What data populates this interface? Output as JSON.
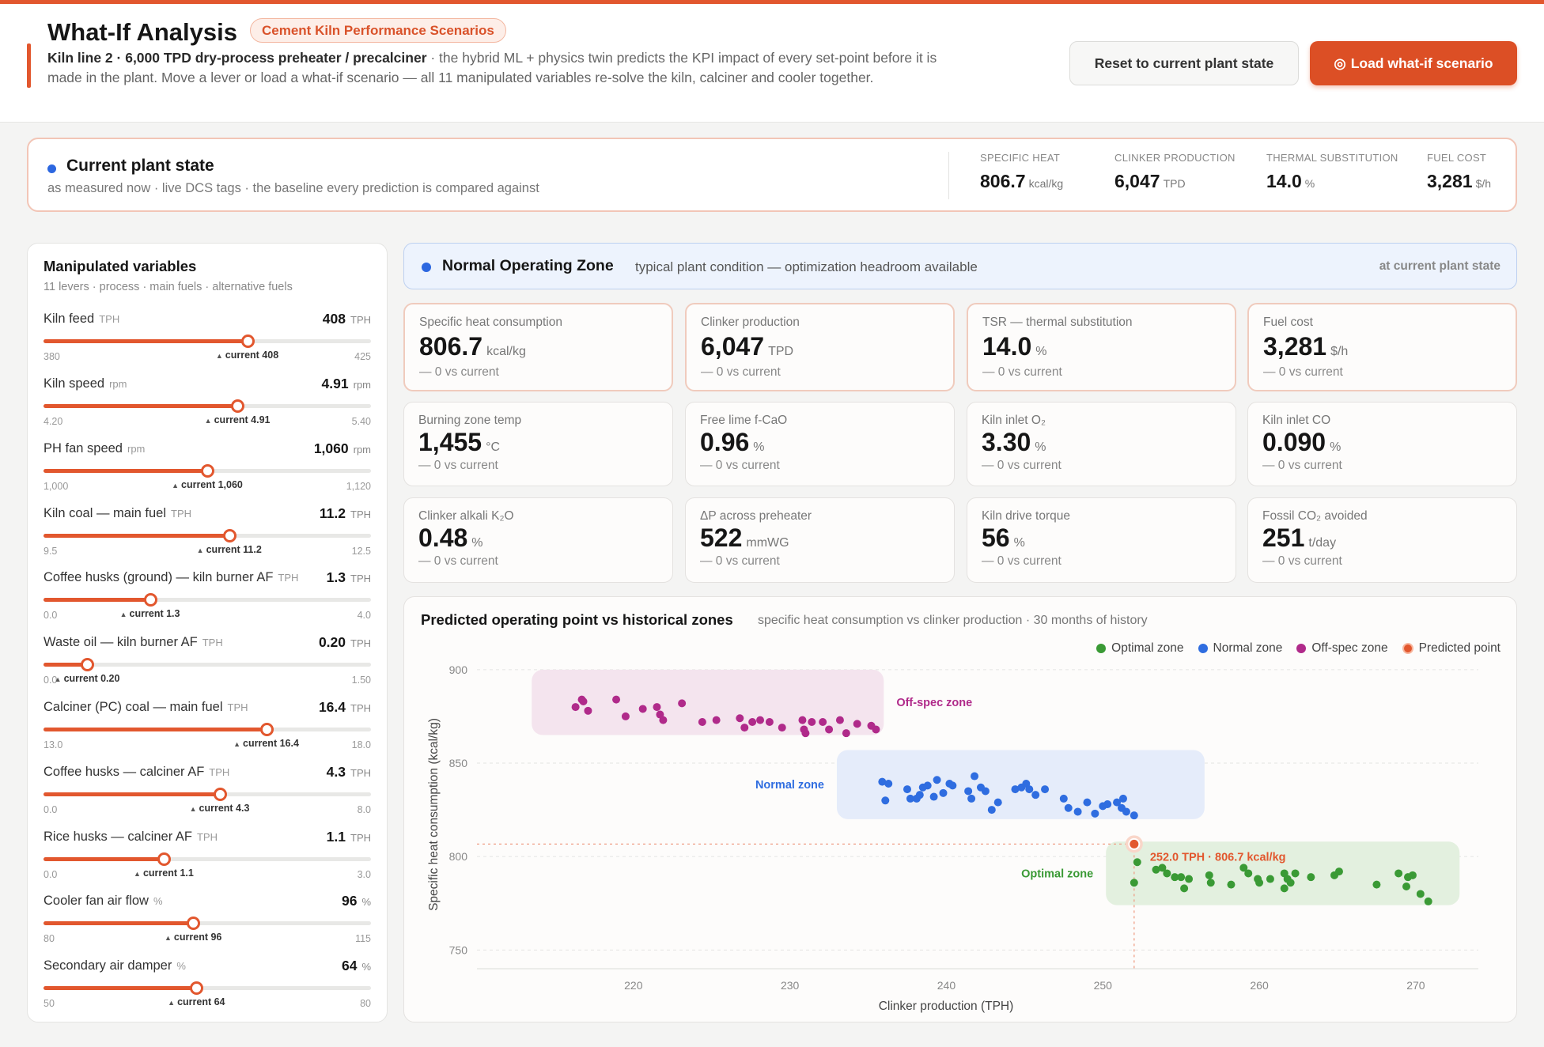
{
  "header": {
    "title": "What-If Analysis",
    "badge": "Cement Kiln Performance Scenarios",
    "desc_bold": "Kiln line 2 · 6,000 TPD dry-process preheater / precalciner",
    "desc_rest": " · the hybrid ML + physics twin predicts the KPI impact of every set-point before it is made in the plant. Move a lever or load a what-if scenario — all 11 manipulated variables re-solve the kiln, calciner and cooler together.",
    "reset_label": "Reset to current plant state",
    "load_icon": "◎",
    "load_label": "Load what-if scenario"
  },
  "current_state": {
    "title": "Current plant state",
    "subtitle": "as measured now · live DCS tags · the baseline every prediction is compared against",
    "metrics": [
      {
        "label": "SPECIFIC HEAT",
        "value": "806.7",
        "unit": "kcal/kg"
      },
      {
        "label": "CLINKER PRODUCTION",
        "value": "6,047",
        "unit": "TPD"
      },
      {
        "label": "THERMAL SUBSTITUTION",
        "value": "14.0",
        "unit": "%"
      },
      {
        "label": "FUEL COST",
        "value": "3,281",
        "unit": "$/h"
      }
    ]
  },
  "levers_panel": {
    "title": "Manipulated variables",
    "subtitle": "11 levers · process · main fuels · alternative fuels",
    "levers": [
      {
        "name": "Kiln feed",
        "unit": "TPH",
        "value": "408",
        "min": "380",
        "max": "425",
        "current": "current 408",
        "fraction": 0.622
      },
      {
        "name": "Kiln speed",
        "unit": "rpm",
        "value": "4.91",
        "min": "4.20",
        "max": "5.40",
        "current": "current 4.91",
        "fraction": 0.592
      },
      {
        "name": "PH fan speed",
        "unit": "rpm",
        "value": "1,060",
        "min": "1,000",
        "max": "1,120",
        "current": "current 1,060",
        "fraction": 0.5
      },
      {
        "name": "Kiln coal — main fuel",
        "unit": "TPH",
        "value": "11.2",
        "min": "9.5",
        "max": "12.5",
        "current": "current 11.2",
        "fraction": 0.567
      },
      {
        "name": "Coffee husks (ground) — kiln burner AF",
        "unit": "TPH",
        "value": "1.3",
        "min": "0.0",
        "max": "4.0",
        "current": "current 1.3",
        "fraction": 0.325
      },
      {
        "name": "Waste oil — kiln burner AF",
        "unit": "TPH",
        "value": "0.20",
        "min": "0.0",
        "max": "1.50",
        "current": "current 0.20",
        "fraction": 0.133
      },
      {
        "name": "Calciner (PC) coal — main fuel",
        "unit": "TPH",
        "value": "16.4",
        "min": "13.0",
        "max": "18.0",
        "current": "current 16.4",
        "fraction": 0.68
      },
      {
        "name": "Coffee husks — calciner AF",
        "unit": "TPH",
        "value": "4.3",
        "min": "0.0",
        "max": "8.0",
        "current": "current 4.3",
        "fraction": 0.5375
      },
      {
        "name": "Rice husks — calciner AF",
        "unit": "TPH",
        "value": "1.1",
        "min": "0.0",
        "max": "3.0",
        "current": "current 1.1",
        "fraction": 0.367
      },
      {
        "name": "Cooler fan air flow",
        "unit": "%",
        "value": "96",
        "min": "80",
        "max": "115",
        "current": "current 96",
        "fraction": 0.457
      },
      {
        "name": "Secondary air damper",
        "unit": "%",
        "value": "64",
        "min": "50",
        "max": "80",
        "current": "current 64",
        "fraction": 0.467
      }
    ]
  },
  "zone": {
    "title": "Normal Operating Zone",
    "desc": "typical plant condition — optimization headroom available",
    "right": "at current plant state"
  },
  "kpis": [
    {
      "label": "Specific heat consumption",
      "value": "806.7",
      "unit": "kcal/kg",
      "delta": "— 0 vs current"
    },
    {
      "label": "Clinker production",
      "value": "6,047",
      "unit": "TPD",
      "delta": "— 0 vs current"
    },
    {
      "label": "TSR — thermal substitution",
      "value": "14.0",
      "unit": "%",
      "delta": "— 0 vs current"
    },
    {
      "label": "Fuel cost",
      "value": "3,281",
      "unit": "$/h",
      "delta": "— 0 vs current"
    },
    {
      "label": "Burning zone temp",
      "value": "1,455",
      "unit": "°C",
      "delta": "— 0 vs current"
    },
    {
      "label": "Free lime f-CaO",
      "value": "0.96",
      "unit": "%",
      "delta": "— 0 vs current"
    },
    {
      "label": "Kiln inlet O₂",
      "value": "3.30",
      "unit": "%",
      "delta": "— 0 vs current"
    },
    {
      "label": "Kiln inlet CO",
      "value": "0.090",
      "unit": "%",
      "delta": "— 0 vs current"
    },
    {
      "label": "Clinker alkali K₂O",
      "value": "0.48",
      "unit": "%",
      "delta": "— 0 vs current"
    },
    {
      "label": "ΔP across preheater",
      "value": "522",
      "unit": "mmWG",
      "delta": "— 0 vs current"
    },
    {
      "label": "Kiln drive torque",
      "value": "56",
      "unit": "%",
      "delta": "— 0 vs current"
    },
    {
      "label": "Fossil CO₂ avoided",
      "value": "251",
      "unit": "t/day",
      "delta": "— 0 vs current"
    }
  ],
  "chart_panel": {
    "title": "Predicted operating point vs historical zones",
    "subtitle": "specific heat consumption vs clinker production · 30 months of history"
  },
  "chart_data": {
    "type": "scatter",
    "xlabel": "Clinker production (TPH)",
    "ylabel": "Specific heat consumption (kcal/kg)",
    "xlim": [
      210,
      274
    ],
    "ylim": [
      740,
      905
    ],
    "xticks": [
      220,
      230,
      240,
      250,
      260,
      270
    ],
    "yticks": [
      750,
      800,
      850,
      900
    ],
    "grid": true,
    "legend_position": "top-right",
    "legend": [
      "Optimal zone",
      "Normal zone",
      "Off-spec zone",
      "Predicted point"
    ],
    "colors": {
      "optimal": "#3a9a35",
      "normal": "#2f6de0",
      "offspec": "#b02a8a",
      "predicted": "#e2572e"
    },
    "zones": [
      {
        "name": "Off-spec zone",
        "label": "Off-spec zone",
        "x": [
          213.5,
          236
        ],
        "y": [
          865,
          900
        ],
        "fill": "#f4e4ee",
        "series": "offspec",
        "label_side": "right"
      },
      {
        "name": "Normal zone",
        "label": "Normal zone",
        "x": [
          233,
          256.5
        ],
        "y": [
          820,
          857
        ],
        "fill": "#e5ecfa",
        "series": "normal",
        "label_side": "left"
      },
      {
        "name": "Optimal zone",
        "label": "Optimal zone",
        "x": [
          250.2,
          272.8
        ],
        "y": [
          774,
          808
        ],
        "fill": "#e3f0df",
        "series": "optimal",
        "label_side": "left"
      }
    ],
    "series": [
      {
        "name": "Off-spec zone",
        "key": "offspec",
        "points": [
          [
            216.3,
            880
          ],
          [
            216.7,
            884
          ],
          [
            216.8,
            883
          ],
          [
            217.1,
            878
          ],
          [
            218.9,
            884
          ],
          [
            219.5,
            875
          ],
          [
            220.6,
            879
          ],
          [
            221.5,
            880
          ],
          [
            221.7,
            876
          ],
          [
            221.9,
            873
          ],
          [
            223.1,
            882
          ],
          [
            224.4,
            872
          ],
          [
            225.3,
            873
          ],
          [
            226.8,
            874
          ],
          [
            227.1,
            869
          ],
          [
            227.6,
            872
          ],
          [
            228.1,
            873
          ],
          [
            228.7,
            872
          ],
          [
            229.5,
            869
          ],
          [
            230.8,
            873
          ],
          [
            230.9,
            868
          ],
          [
            231.0,
            866
          ],
          [
            231.4,
            872
          ],
          [
            232.1,
            872
          ],
          [
            232.5,
            868
          ],
          [
            233.2,
            873
          ],
          [
            233.6,
            866
          ],
          [
            234.3,
            871
          ],
          [
            235.2,
            870
          ],
          [
            235.5,
            868
          ]
        ]
      },
      {
        "name": "Normal zone",
        "key": "normal",
        "points": [
          [
            235.9,
            840
          ],
          [
            236.3,
            839
          ],
          [
            236.1,
            830
          ],
          [
            237.5,
            836
          ],
          [
            237.7,
            831
          ],
          [
            238.1,
            831
          ],
          [
            238.3,
            833
          ],
          [
            238.5,
            837
          ],
          [
            238.8,
            838
          ],
          [
            239.2,
            832
          ],
          [
            239.4,
            841
          ],
          [
            239.8,
            834
          ],
          [
            240.2,
            839
          ],
          [
            240.4,
            838
          ],
          [
            241.4,
            835
          ],
          [
            241.6,
            831
          ],
          [
            241.8,
            843
          ],
          [
            242.2,
            837
          ],
          [
            242.5,
            835
          ],
          [
            242.9,
            825
          ],
          [
            243.3,
            829
          ],
          [
            244.4,
            836
          ],
          [
            244.8,
            837
          ],
          [
            245.1,
            839
          ],
          [
            245.3,
            836
          ],
          [
            245.7,
            833
          ],
          [
            246.3,
            836
          ],
          [
            247.5,
            831
          ],
          [
            247.8,
            826
          ],
          [
            248.4,
            824
          ],
          [
            249.0,
            829
          ],
          [
            249.5,
            823
          ],
          [
            250.0,
            827
          ],
          [
            250.3,
            828
          ],
          [
            250.9,
            829
          ],
          [
            251.2,
            826
          ],
          [
            251.3,
            831
          ],
          [
            251.5,
            824
          ],
          [
            252.0,
            822
          ]
        ]
      },
      {
        "name": "Optimal zone",
        "key": "optimal",
        "points": [
          [
            252.2,
            797
          ],
          [
            252.0,
            786
          ],
          [
            253.4,
            793
          ],
          [
            253.8,
            794
          ],
          [
            254.1,
            791
          ],
          [
            254.6,
            789
          ],
          [
            255.0,
            789
          ],
          [
            255.2,
            783
          ],
          [
            255.5,
            788
          ],
          [
            256.8,
            790
          ],
          [
            256.9,
            786
          ],
          [
            258.2,
            785
          ],
          [
            259.0,
            794
          ],
          [
            259.3,
            791
          ],
          [
            259.9,
            788
          ],
          [
            260.0,
            786
          ],
          [
            260.7,
            788
          ],
          [
            261.6,
            791
          ],
          [
            261.8,
            788
          ],
          [
            261.6,
            783
          ],
          [
            262.0,
            786
          ],
          [
            262.3,
            791
          ],
          [
            263.3,
            789
          ],
          [
            264.8,
            790
          ],
          [
            265.1,
            792
          ],
          [
            267.5,
            785
          ],
          [
            268.9,
            791
          ],
          [
            269.4,
            784
          ],
          [
            269.5,
            789
          ],
          [
            269.8,
            790
          ],
          [
            270.3,
            780
          ],
          [
            270.8,
            776
          ]
        ]
      },
      {
        "name": "Predicted point",
        "key": "predicted",
        "points": [
          [
            252.0,
            806.7
          ]
        ]
      }
    ],
    "predicted_label": "252.0 TPH · 806.7 kcal/kg"
  }
}
